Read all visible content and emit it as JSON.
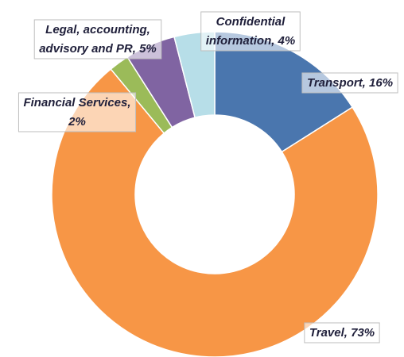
{
  "chart_data": {
    "type": "donut",
    "values": [
      16,
      73,
      2,
      5,
      4
    ],
    "value_labels": [
      [
        "Transport, 16%"
      ],
      [
        "Travel, 73%"
      ],
      [
        "Financial Services,",
        "2%"
      ],
      [
        "Legal, accounting,",
        "advisory and PR, 5%"
      ],
      [
        "Confidential",
        "information, 4%"
      ]
    ],
    "colors": [
      "#4a76ae",
      "#f79646",
      "#9bbb59",
      "#8064a2",
      "#b7dee8"
    ]
  }
}
